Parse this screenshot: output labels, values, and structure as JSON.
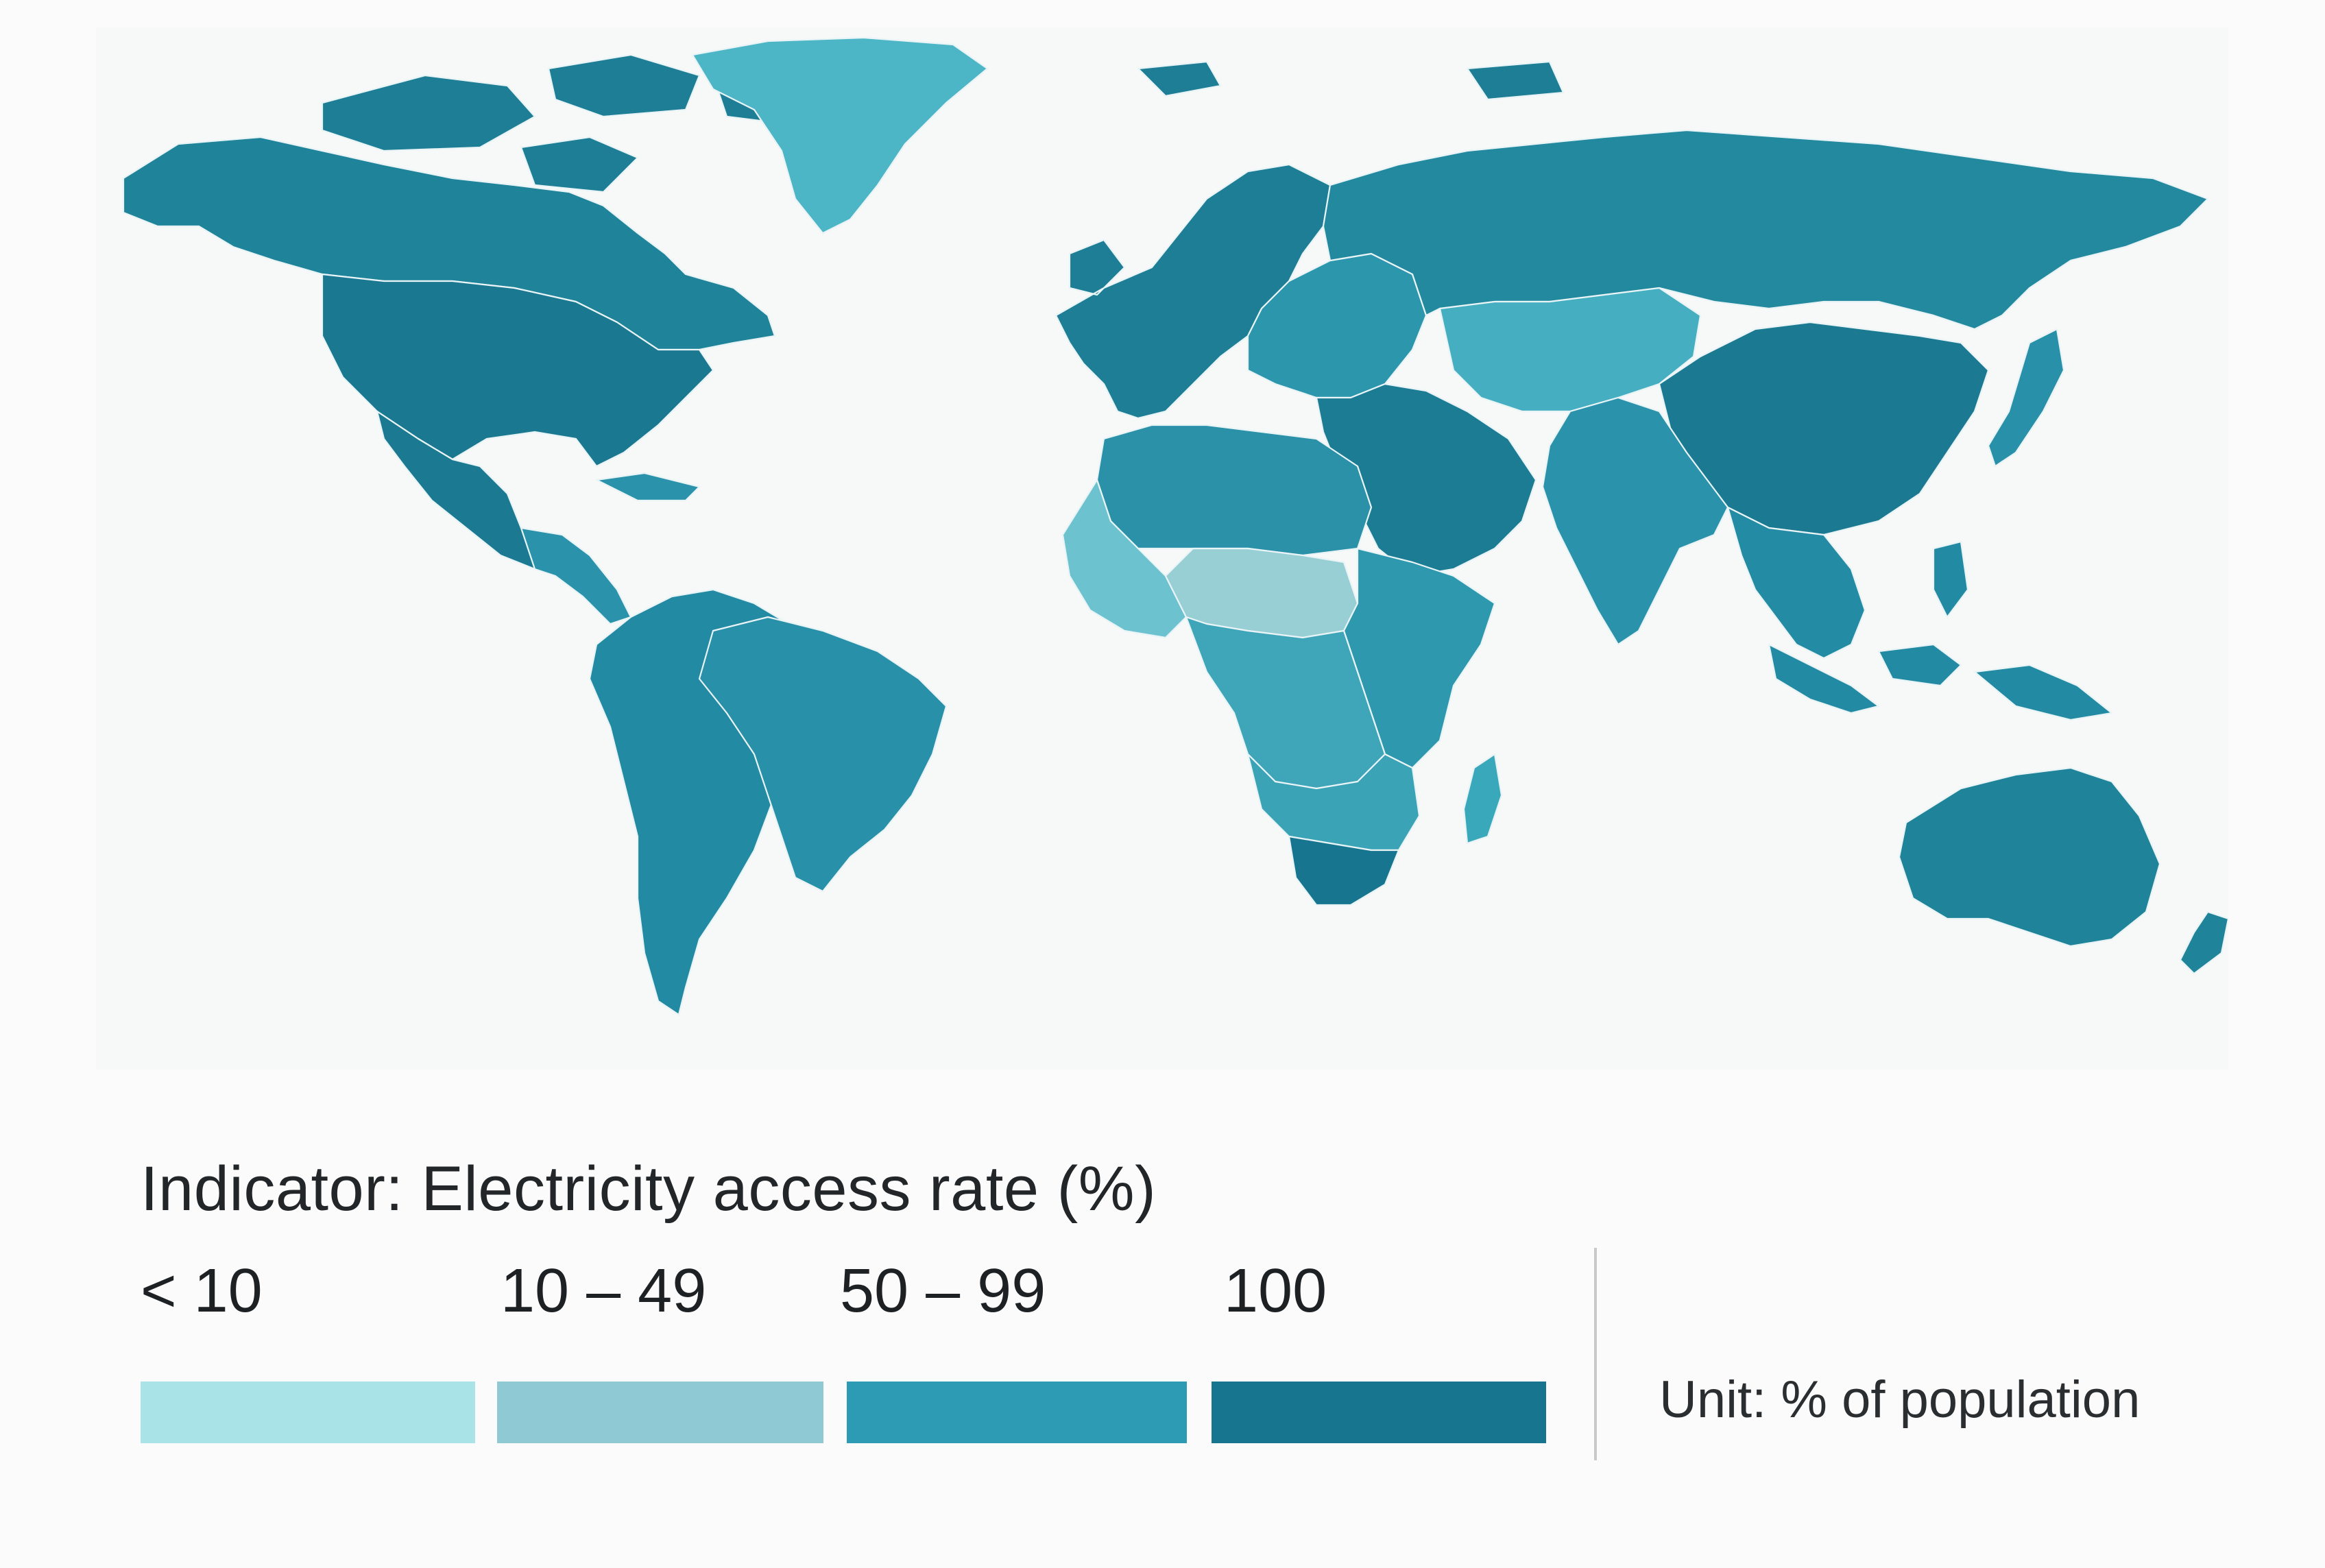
{
  "legend": {
    "title": "Indicator: Electricity access rate (%)",
    "unit": "Unit: % of population",
    "bins": [
      {
        "label": "< 10",
        "color": "#a9e3e8"
      },
      {
        "label": "10 – 49",
        "color": "#8fc9d3"
      },
      {
        "label": "50 – 99",
        "color": "#2e9bb4"
      },
      {
        "label": "100",
        "color": "#17758f"
      }
    ]
  },
  "map": {
    "ocean_color": "#f7f8f8",
    "border_color": "#e9f4f6",
    "regions": [
      {
        "name": "north-america",
        "class_color": "#1f8399"
      },
      {
        "name": "united-states",
        "class_color": "#1a7891"
      },
      {
        "name": "mexico",
        "class_color": "#1b7a92"
      },
      {
        "name": "central-america",
        "class_color": "#2a93ab"
      },
      {
        "name": "greenland",
        "class_color": "#4cb5c6"
      },
      {
        "name": "south-america",
        "class_color": "#238aa3"
      },
      {
        "name": "brazil",
        "class_color": "#2890a8"
      },
      {
        "name": "europe",
        "class_color": "#1d7e96"
      },
      {
        "name": "eastern-europe",
        "class_color": "#2c96ad"
      },
      {
        "name": "russia",
        "class_color": "#23899f"
      },
      {
        "name": "central-asia",
        "class_color": "#45aec0"
      },
      {
        "name": "china",
        "class_color": "#1b7a92"
      },
      {
        "name": "india",
        "class_color": "#2a93ab"
      },
      {
        "name": "southeast-asia",
        "class_color": "#238ba3"
      },
      {
        "name": "middle-east",
        "class_color": "#1c7c94"
      },
      {
        "name": "north-africa",
        "class_color": "#2a91a9"
      },
      {
        "name": "west-africa",
        "class_color": "#6cc2cf"
      },
      {
        "name": "sahel",
        "class_color": "#98cfd5"
      },
      {
        "name": "central-africa",
        "class_color": "#3fa6b9"
      },
      {
        "name": "east-africa",
        "class_color": "#2e98ae"
      },
      {
        "name": "southern-africa",
        "class_color": "#3aa3b6"
      },
      {
        "name": "south-africa",
        "class_color": "#17758f"
      },
      {
        "name": "madagascar",
        "class_color": "#3aa8bb"
      },
      {
        "name": "australia",
        "class_color": "#1f8399"
      },
      {
        "name": "new-zealand",
        "class_color": "#1f8399"
      },
      {
        "name": "japan",
        "class_color": "#2890a8"
      },
      {
        "name": "indonesia",
        "class_color": "#238aa3"
      },
      {
        "name": "arctic-islands",
        "class_color": "#1d7e96"
      }
    ]
  }
}
